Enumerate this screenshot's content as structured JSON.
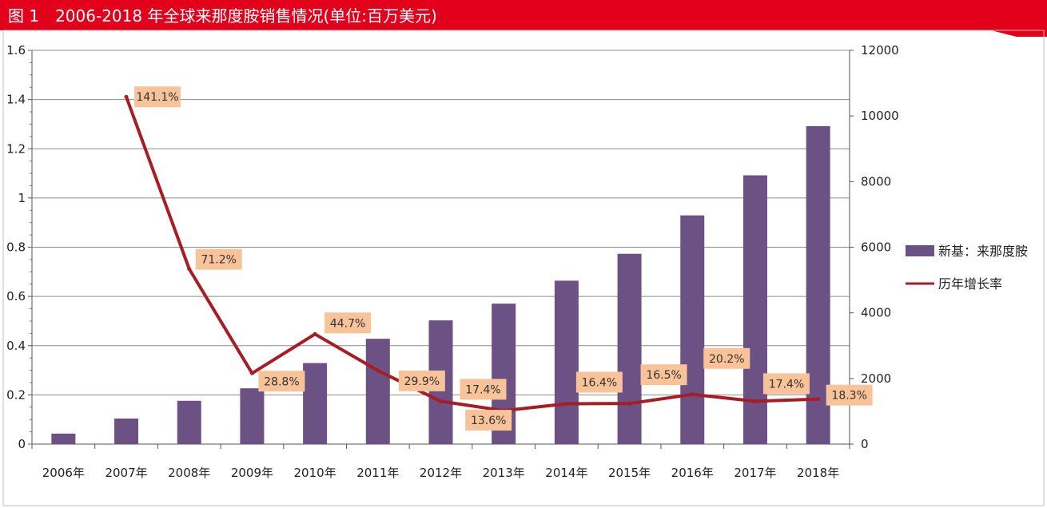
{
  "figure": {
    "title": "图 1　2006-2018 年全球来那度胺销售情况(单位:百万美元)",
    "colors": {
      "header": "#e2001a",
      "bar": "#6c5184",
      "line": "#a81c24",
      "label_box": "#f8c399",
      "grid": "#8c8c8c"
    }
  },
  "chart_data": {
    "type": "bar",
    "categories": [
      "2006年",
      "2007年",
      "2008年",
      "2009年",
      "2010年",
      "2011年",
      "2012年",
      "2013年",
      "2014年",
      "2015年",
      "2016年",
      "2017年",
      "2018年"
    ],
    "series": [
      {
        "name": "新基：来那度胺",
        "type": "bar",
        "axis": "right",
        "values": [
          320,
          780,
          1320,
          1700,
          2470,
          3210,
          3770,
          4280,
          4980,
          5800,
          6970,
          8190,
          9690
        ]
      },
      {
        "name": "历年增长率",
        "type": "line",
        "axis": "left",
        "values": [
          null,
          1.411,
          0.712,
          0.288,
          0.447,
          0.299,
          0.174,
          0.136,
          0.164,
          0.165,
          0.202,
          0.174,
          0.183
        ],
        "data_labels": [
          "",
          "141.1%",
          "71.2%",
          "28.8%",
          "44.7%",
          "29.9%",
          "17.4%",
          "13.6%",
          "16.4%",
          "16.5%",
          "20.2%",
          "17.4%",
          "18.3%"
        ]
      }
    ],
    "y_left": {
      "range": [
        0,
        1.6
      ],
      "ticks": [
        "0",
        "0.2",
        "0.4",
        "0.6",
        "0.8",
        "1",
        "1.2",
        "1.4",
        "1.6"
      ]
    },
    "y_right": {
      "range": [
        0,
        12000
      ],
      "ticks": [
        "0",
        "2000",
        "4000",
        "6000",
        "8000",
        "10000",
        "12000"
      ]
    },
    "grid": true,
    "legend_position": "right"
  }
}
